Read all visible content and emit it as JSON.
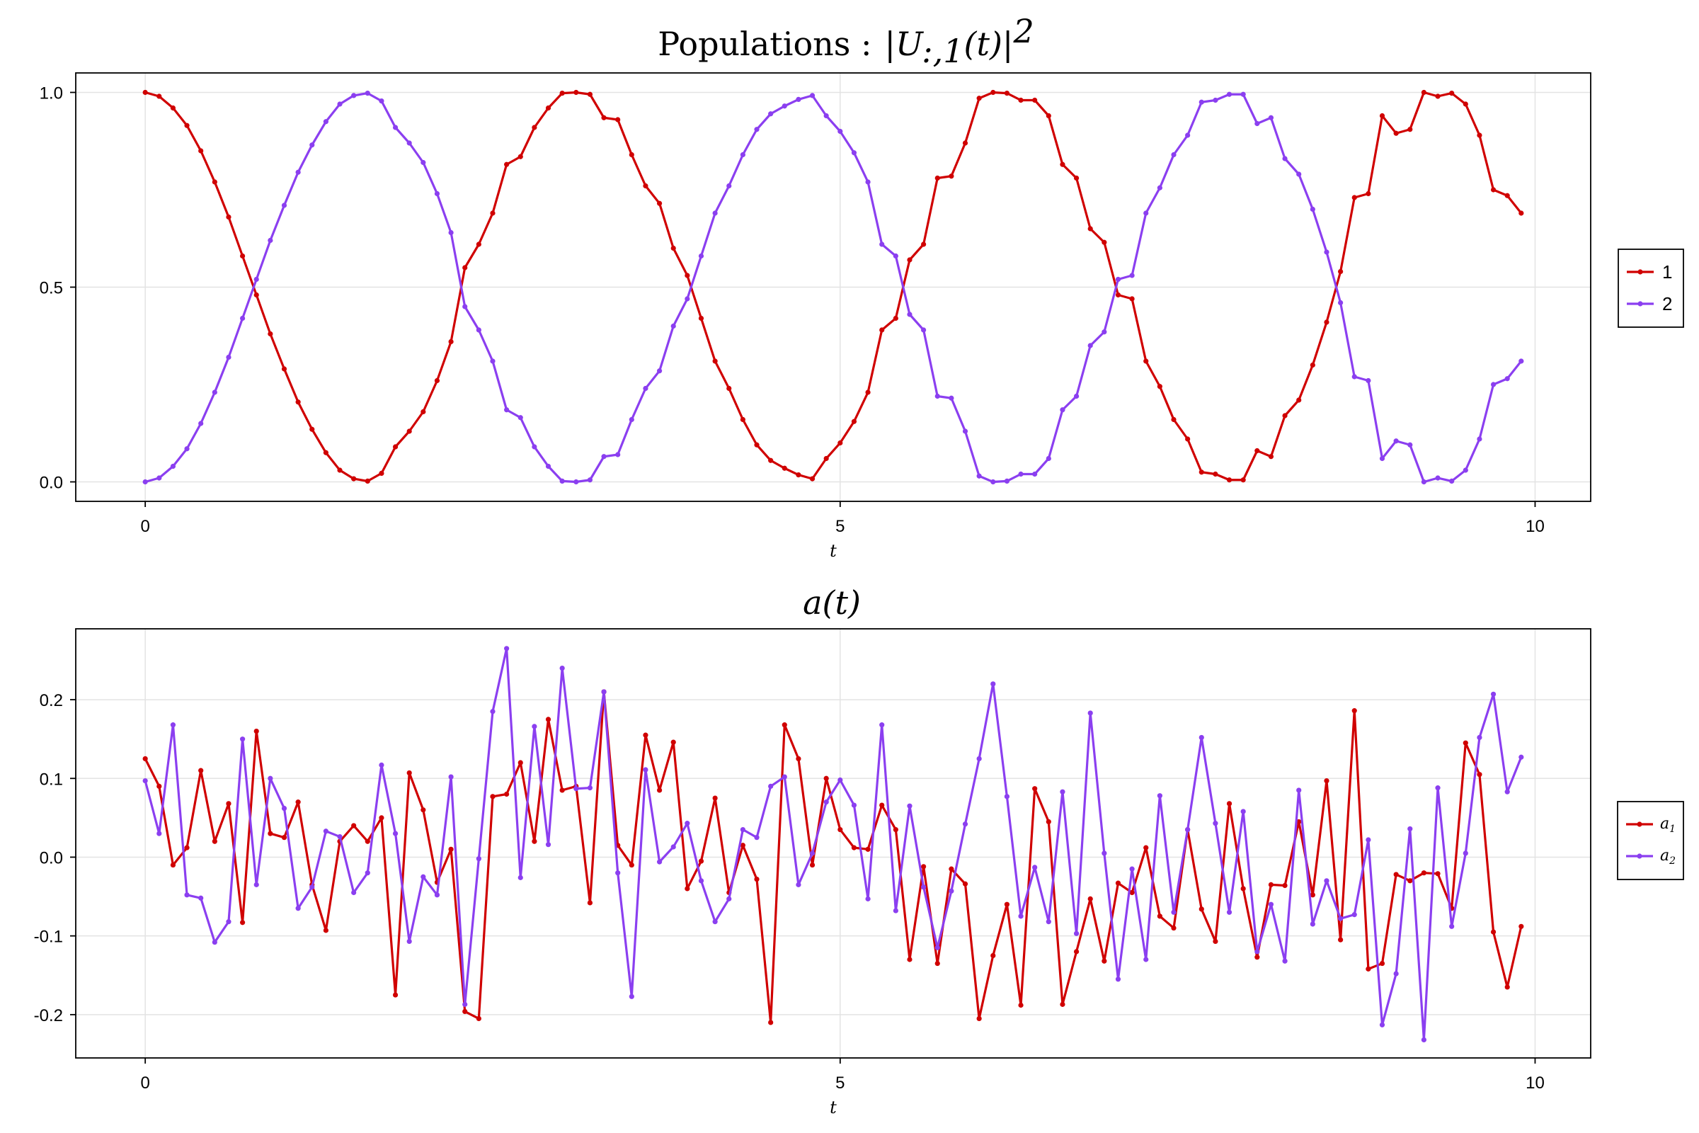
{
  "chart_data": [
    {
      "type": "line",
      "title": "Populations: |U_{:,1}(t)|^2",
      "title_parts": {
        "prefix": "Populations :",
        "math": "|U",
        "sub": ":,1",
        "mid": "(t)|",
        "sup": "2"
      },
      "xlabel": "t",
      "ylabel": "",
      "xlim": [
        -0.5,
        10.4
      ],
      "ylim": [
        -0.05,
        1.05
      ],
      "xticks": [
        0,
        5,
        10
      ],
      "yticks": [
        0.0,
        0.5,
        1.0
      ],
      "xtick_labels": [
        "0",
        "5",
        "10"
      ],
      "ytick_labels": [
        "0.0",
        "0.5",
        "1.0"
      ],
      "grid": true,
      "legend": "right",
      "x": [
        0.0,
        0.1,
        0.2,
        0.3,
        0.4,
        0.5,
        0.6,
        0.7,
        0.8,
        0.9,
        1.0,
        1.1,
        1.2,
        1.3,
        1.4,
        1.5,
        1.6,
        1.7,
        1.8,
        1.9,
        2.0,
        2.1,
        2.2,
        2.3,
        2.4,
        2.5,
        2.6,
        2.7,
        2.8,
        2.9,
        3.0,
        3.1,
        3.2,
        3.3,
        3.4,
        3.5,
        3.6,
        3.7,
        3.8,
        3.9,
        4.0,
        4.1,
        4.2,
        4.3,
        4.4,
        4.5,
        4.6,
        4.7,
        4.8,
        4.9,
        5.0,
        5.1,
        5.2,
        5.3,
        5.4,
        5.5,
        5.6,
        5.7,
        5.8,
        5.9,
        6.0,
        6.1,
        6.2,
        6.3,
        6.4,
        6.5,
        6.6,
        6.7,
        6.8,
        6.9,
        7.0,
        7.1,
        7.2,
        7.3,
        7.4,
        7.5,
        7.6,
        7.7,
        7.8,
        7.9,
        8.0,
        8.1,
        8.2,
        8.3,
        8.4,
        8.5,
        8.6,
        8.7,
        8.8,
        8.9,
        9.0,
        9.1,
        9.2,
        9.3,
        9.4,
        9.5,
        9.6,
        9.7,
        9.8,
        9.9
      ],
      "series": [
        {
          "name": "1",
          "color": "#d00000",
          "values": [
            1.0,
            0.99,
            0.96,
            0.915,
            0.85,
            0.77,
            0.68,
            0.58,
            0.48,
            0.38,
            0.29,
            0.205,
            0.135,
            0.075,
            0.03,
            0.008,
            0.002,
            0.022,
            0.09,
            0.13,
            0.18,
            0.26,
            0.36,
            0.55,
            0.61,
            0.69,
            0.815,
            0.835,
            0.91,
            0.96,
            0.998,
            1.0,
            0.995,
            0.935,
            0.93,
            0.84,
            0.76,
            0.715,
            0.6,
            0.53,
            0.42,
            0.31,
            0.24,
            0.16,
            0.095,
            0.055,
            0.035,
            0.018,
            0.008,
            0.06,
            0.1,
            0.155,
            0.23,
            0.39,
            0.42,
            0.57,
            0.61,
            0.78,
            0.785,
            0.87,
            0.985,
            1.0,
            0.998,
            0.98,
            0.98,
            0.94,
            0.815,
            0.78,
            0.65,
            0.615,
            0.48,
            0.47,
            0.31,
            0.245,
            0.16,
            0.11,
            0.025,
            0.02,
            0.005,
            0.005,
            0.08,
            0.065,
            0.17,
            0.21,
            0.3,
            0.41,
            0.54,
            0.73,
            0.74,
            0.94,
            0.895,
            0.905,
            1.0,
            0.99,
            0.998,
            0.97,
            0.89,
            0.75,
            0.735,
            0.69
          ]
        },
        {
          "name": "2",
          "color": "#8b3ff0",
          "values": [
            0.0,
            0.01,
            0.04,
            0.085,
            0.15,
            0.23,
            0.32,
            0.42,
            0.52,
            0.62,
            0.71,
            0.795,
            0.865,
            0.925,
            0.97,
            0.992,
            0.998,
            0.978,
            0.91,
            0.87,
            0.82,
            0.74,
            0.64,
            0.45,
            0.39,
            0.31,
            0.185,
            0.165,
            0.09,
            0.04,
            0.002,
            0.0,
            0.005,
            0.065,
            0.07,
            0.16,
            0.24,
            0.285,
            0.4,
            0.47,
            0.58,
            0.69,
            0.76,
            0.84,
            0.905,
            0.945,
            0.965,
            0.982,
            0.992,
            0.94,
            0.9,
            0.845,
            0.77,
            0.61,
            0.58,
            0.43,
            0.39,
            0.22,
            0.215,
            0.13,
            0.015,
            0.0,
            0.002,
            0.02,
            0.02,
            0.06,
            0.185,
            0.22,
            0.35,
            0.385,
            0.52,
            0.53,
            0.69,
            0.755,
            0.84,
            0.89,
            0.975,
            0.98,
            0.995,
            0.995,
            0.92,
            0.935,
            0.83,
            0.79,
            0.7,
            0.59,
            0.46,
            0.27,
            0.26,
            0.06,
            0.105,
            0.095,
            0.0,
            0.01,
            0.002,
            0.03,
            0.11,
            0.25,
            0.265,
            0.31
          ]
        }
      ]
    },
    {
      "type": "line",
      "title": "a(t)",
      "xlabel": "t",
      "ylabel": "",
      "xlim": [
        -0.5,
        10.4
      ],
      "ylim": [
        -0.255,
        0.29
      ],
      "xticks": [
        0,
        5,
        10
      ],
      "yticks": [
        -0.2,
        -0.1,
        0.0,
        0.1,
        0.2
      ],
      "xtick_labels": [
        "0",
        "5",
        "10"
      ],
      "ytick_labels": [
        "-0.2",
        "-0.1",
        "0.0",
        "0.1",
        "0.2"
      ],
      "grid": true,
      "legend": "right",
      "x": [
        0.0,
        0.1,
        0.2,
        0.3,
        0.4,
        0.5,
        0.6,
        0.7,
        0.8,
        0.9,
        1.0,
        1.1,
        1.2,
        1.3,
        1.4,
        1.5,
        1.6,
        1.7,
        1.8,
        1.9,
        2.0,
        2.1,
        2.2,
        2.3,
        2.4,
        2.5,
        2.6,
        2.7,
        2.8,
        2.9,
        3.0,
        3.1,
        3.2,
        3.3,
        3.4,
        3.5,
        3.6,
        3.7,
        3.8,
        3.9,
        4.0,
        4.1,
        4.2,
        4.3,
        4.4,
        4.5,
        4.6,
        4.7,
        4.8,
        4.9,
        5.0,
        5.1,
        5.2,
        5.3,
        5.4,
        5.5,
        5.6,
        5.7,
        5.8,
        5.9,
        6.0,
        6.1,
        6.2,
        6.3,
        6.4,
        6.5,
        6.6,
        6.7,
        6.8,
        6.9,
        7.0,
        7.1,
        7.2,
        7.3,
        7.4,
        7.5,
        7.6,
        7.7,
        7.8,
        7.9,
        8.0,
        8.1,
        8.2,
        8.3,
        8.4,
        8.5,
        8.6,
        8.7,
        8.8,
        8.9,
        9.0,
        9.1,
        9.2,
        9.3,
        9.4,
        9.5,
        9.6,
        9.7,
        9.8,
        9.9
      ],
      "series": [
        {
          "name": "a1",
          "label_math": {
            "base": "a",
            "sub": "1"
          },
          "color": "#d00000",
          "values": [
            0.125,
            0.09,
            -0.01,
            0.012,
            0.11,
            0.02,
            0.068,
            -0.083,
            0.16,
            0.03,
            0.025,
            0.07,
            -0.035,
            -0.093,
            0.02,
            0.04,
            0.02,
            0.05,
            -0.175,
            0.107,
            0.06,
            -0.032,
            0.01,
            -0.196,
            -0.205,
            0.077,
            0.08,
            0.12,
            0.02,
            0.175,
            0.085,
            0.09,
            -0.058,
            0.21,
            0.015,
            -0.01,
            0.155,
            0.085,
            0.146,
            -0.04,
            -0.005,
            0.075,
            -0.045,
            0.015,
            -0.028,
            -0.21,
            0.168,
            0.125,
            -0.01,
            0.1,
            0.035,
            0.012,
            0.01,
            0.066,
            0.035,
            -0.13,
            -0.012,
            -0.135,
            -0.015,
            -0.034,
            -0.205,
            -0.125,
            -0.06,
            -0.188,
            0.087,
            0.045,
            -0.187,
            -0.12,
            -0.053,
            -0.132,
            -0.033,
            -0.045,
            0.012,
            -0.075,
            -0.09,
            0.035,
            -0.066,
            -0.107,
            0.068,
            -0.04,
            -0.127,
            -0.035,
            -0.036,
            0.045,
            -0.048,
            0.097,
            -0.105,
            0.186,
            -0.142,
            -0.135,
            -0.022,
            -0.03,
            -0.02,
            -0.021,
            -0.065,
            0.145,
            0.105,
            -0.095,
            -0.165,
            -0.088
          ]
        },
        {
          "name": "a2",
          "label_math": {
            "base": "a",
            "sub": "2"
          },
          "color": "#8b3ff0",
          "values": [
            0.097,
            0.03,
            0.168,
            -0.048,
            -0.052,
            -0.108,
            -0.082,
            0.15,
            -0.035,
            0.1,
            0.062,
            -0.065,
            -0.038,
            0.033,
            0.026,
            -0.045,
            -0.02,
            0.117,
            0.03,
            -0.107,
            -0.025,
            -0.048,
            0.102,
            -0.187,
            -0.002,
            0.185,
            0.265,
            -0.026,
            0.166,
            0.016,
            0.24,
            0.087,
            0.088,
            0.21,
            -0.02,
            -0.177,
            0.111,
            -0.006,
            0.013,
            0.043,
            -0.03,
            -0.082,
            -0.053,
            0.035,
            0.025,
            0.09,
            0.102,
            -0.035,
            0.005,
            0.07,
            0.098,
            0.066,
            -0.053,
            0.168,
            -0.068,
            0.065,
            -0.038,
            -0.115,
            -0.043,
            0.042,
            0.125,
            0.22,
            0.077,
            -0.075,
            -0.013,
            -0.082,
            0.083,
            -0.097,
            0.183,
            0.005,
            -0.155,
            -0.015,
            -0.13,
            0.078,
            -0.07,
            0.035,
            0.152,
            0.043,
            -0.07,
            0.058,
            -0.12,
            -0.06,
            -0.132,
            0.085,
            -0.085,
            -0.03,
            -0.078,
            -0.073,
            0.022,
            -0.213,
            -0.148,
            0.036,
            -0.232,
            0.088,
            -0.088,
            0.005,
            0.152,
            0.207,
            0.083,
            0.127
          ]
        }
      ]
    }
  ]
}
